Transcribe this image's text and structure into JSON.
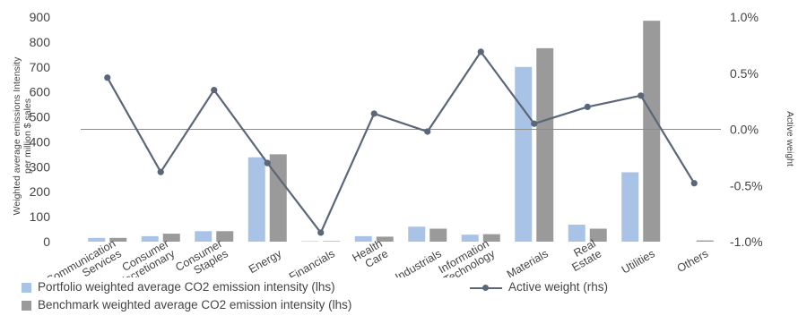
{
  "chart_data": {
    "type": "bar",
    "categories": [
      [
        "Communication",
        "Services"
      ],
      [
        "Consumer",
        "Discretionary"
      ],
      [
        "Consumer",
        "Staples"
      ],
      [
        "Energy"
      ],
      [
        "Financials"
      ],
      [
        "Health",
        "Care"
      ],
      [
        "Industrials"
      ],
      [
        "Information",
        "Technology"
      ],
      [
        "Materials"
      ],
      [
        "Real",
        "Estate"
      ],
      [
        "Utilities"
      ],
      [
        "Others"
      ]
    ],
    "series": [
      {
        "name": "Portfolio weighted average CO2 emission intensity (lhs)",
        "kind": "bar",
        "axis": "left",
        "color": "#a9c3e6",
        "values": [
          15,
          22,
          42,
          338,
          2,
          22,
          60,
          28,
          700,
          68,
          278,
          0
        ]
      },
      {
        "name": "Benchmark weighted average CO2 emission intensity (lhs)",
        "kind": "bar",
        "axis": "left",
        "color": "#9a9a9a",
        "values": [
          15,
          32,
          42,
          350,
          2,
          20,
          52,
          30,
          775,
          52,
          885,
          5
        ]
      },
      {
        "name": "Active weight (rhs)",
        "kind": "line",
        "axis": "right",
        "color": "#5b6779",
        "values": [
          0.46,
          -0.38,
          0.35,
          -0.3,
          -0.92,
          0.14,
          -0.02,
          0.69,
          0.05,
          0.2,
          0.3,
          -0.48
        ]
      }
    ],
    "y_left": {
      "label": [
        "Weighted average emissions Intensity",
        "per million $ sales"
      ],
      "ylim": [
        0,
        900
      ],
      "ticks": [
        "0",
        "100",
        "200",
        "300",
        "400",
        "500",
        "600",
        "700",
        "800",
        "900"
      ]
    },
    "y_right": {
      "label": "Active weight",
      "ylim": [
        -1.0,
        1.0
      ],
      "ticks": [
        "-1.0%",
        "-0.5%",
        "0.0%",
        "0.5%",
        "1.0%"
      ],
      "tick_values": [
        -1.0,
        -0.5,
        0.0,
        0.5,
        1.0
      ]
    },
    "grid": false,
    "legend_position": "bottom-left"
  }
}
